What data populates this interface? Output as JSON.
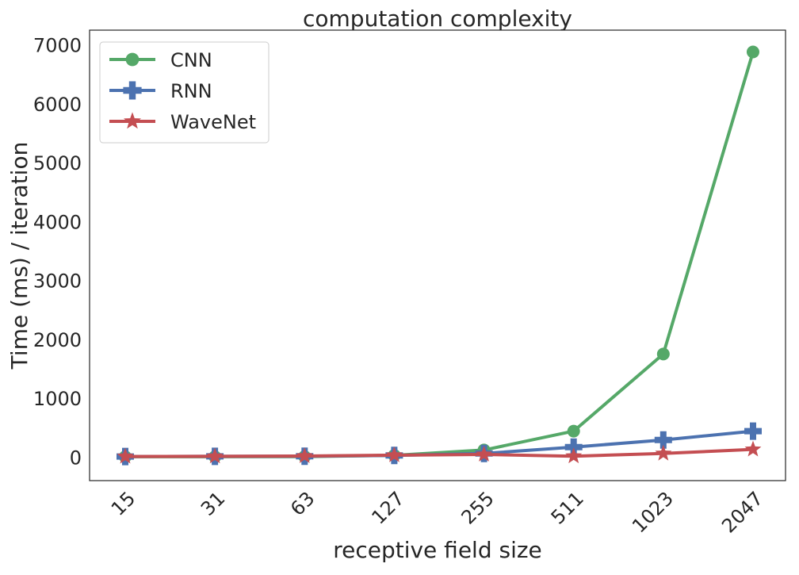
{
  "chart_data": {
    "type": "line",
    "title": "computation complexity",
    "xlabel": "receptive field size",
    "ylabel": "Time (ms) / iteration",
    "categories": [
      "15",
      "31",
      "63",
      "127",
      "255",
      "511",
      "1023",
      "2047"
    ],
    "ylim": [
      -400,
      7250
    ],
    "yticks": [
      0,
      1000,
      2000,
      3000,
      4000,
      5000,
      6000,
      7000
    ],
    "ytick_labels": [
      "0",
      "1000",
      "2000",
      "3000",
      "4000",
      "5000",
      "6000",
      "7000"
    ],
    "grid": false,
    "legend_position": "top-left",
    "series": [
      {
        "name": "CNN",
        "color": "#55a868",
        "marker": "circle",
        "values": [
          5,
          5,
          8,
          30,
          120,
          440,
          1750,
          6880
        ]
      },
      {
        "name": "RNN",
        "color": "#4c72b0",
        "marker": "plus",
        "values": [
          10,
          12,
          15,
          28,
          60,
          170,
          290,
          440
        ]
      },
      {
        "name": "WaveNet",
        "color": "#c44e52",
        "marker": "star",
        "values": [
          10,
          12,
          18,
          32,
          45,
          15,
          60,
          130
        ]
      }
    ]
  }
}
